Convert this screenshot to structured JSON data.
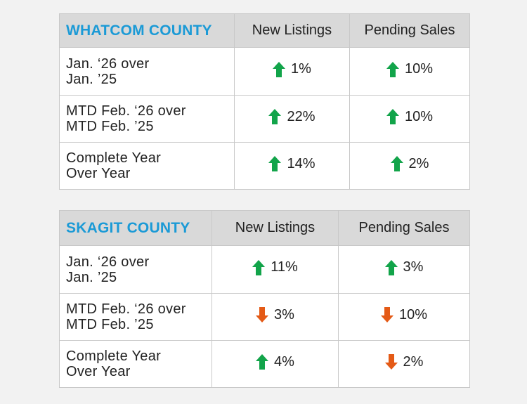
{
  "colors": {
    "county_title": "#1b9ad6",
    "up_arrow": "#12a44a",
    "down_arrow": "#e45a16",
    "header_bg": "#d9d9d9",
    "page_bg": "#f2f2f2"
  },
  "whatcom": {
    "title": "WHATCOM COUNTY",
    "col1": "New Listings",
    "col2": "Pending Sales",
    "rows": [
      {
        "label_line1": "Jan. ‘26 over",
        "label_line2": "Jan. ’25",
        "new_listings": {
          "direction": "up",
          "icon": "arrow-up-icon",
          "value": "1%"
        },
        "pending_sales": {
          "direction": "up",
          "icon": "arrow-up-icon",
          "value": "10%"
        }
      },
      {
        "label_line1": "MTD Feb. ‘26 over",
        "label_line2": "MTD Feb. ’25",
        "new_listings": {
          "direction": "up",
          "icon": "arrow-up-icon",
          "value": "22%"
        },
        "pending_sales": {
          "direction": "up",
          "icon": "arrow-up-icon",
          "value": "10%"
        }
      },
      {
        "label_line1": "Complete Year",
        "label_line2": "Over Year",
        "new_listings": {
          "direction": "up",
          "icon": "arrow-up-icon",
          "value": "14%"
        },
        "pending_sales": {
          "direction": "up",
          "icon": "arrow-up-icon",
          "value": "2%"
        }
      }
    ]
  },
  "skagit": {
    "title": "SKAGIT COUNTY",
    "col1": "New Listings",
    "col2": "Pending Sales",
    "rows": [
      {
        "label_line1": "Jan. ‘26 over",
        "label_line2": "Jan. ’25",
        "new_listings": {
          "direction": "up",
          "icon": "arrow-up-icon",
          "value": "11%"
        },
        "pending_sales": {
          "direction": "up",
          "icon": "arrow-up-icon",
          "value": "3%"
        }
      },
      {
        "label_line1": "MTD Feb. ‘26 over",
        "label_line2": "MTD Feb. ’25",
        "new_listings": {
          "direction": "down",
          "icon": "arrow-down-icon",
          "value": "3%"
        },
        "pending_sales": {
          "direction": "down",
          "icon": "arrow-down-icon",
          "value": "10%"
        }
      },
      {
        "label_line1": "Complete Year",
        "label_line2": "Over Year",
        "new_listings": {
          "direction": "up",
          "icon": "arrow-up-icon",
          "value": "4%"
        },
        "pending_sales": {
          "direction": "down",
          "icon": "arrow-down-icon",
          "value": "2%"
        }
      }
    ]
  }
}
